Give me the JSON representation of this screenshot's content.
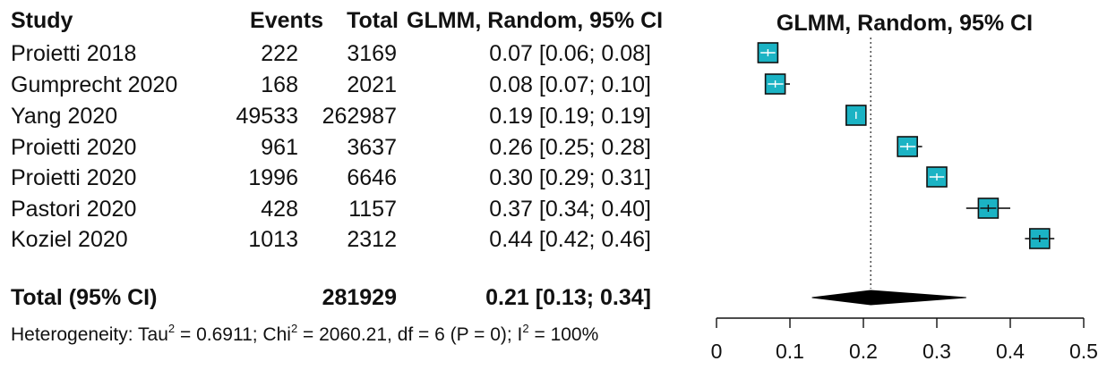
{
  "table": {
    "headers": {
      "study": "Study",
      "events": "Events",
      "total": "Total",
      "ci": "GLMM, Random, 95% CI",
      "plot": "GLMM, Random, 95% CI"
    },
    "rows": [
      {
        "study": "Proietti 2018",
        "events": "222",
        "total": "3169",
        "ci": "0.07 [0.06; 0.08]"
      },
      {
        "study": "Gumprecht 2020",
        "events": "168",
        "total": "2021",
        "ci": "0.08 [0.07; 0.10]"
      },
      {
        "study": "Yang 2020",
        "events": "49533",
        "total": "262987",
        "ci": "0.19 [0.19; 0.19]"
      },
      {
        "study": "Proietti 2020",
        "events": "961",
        "total": "3637",
        "ci": "0.26 [0.25; 0.28]"
      },
      {
        "study": "Proietti 2020",
        "events": "1996",
        "total": "6646",
        "ci": "0.30 [0.29; 0.31]"
      },
      {
        "study": "Pastori 2020",
        "events": "428",
        "total": "1157",
        "ci": "0.37 [0.34; 0.40]"
      },
      {
        "study": "Koziel 2020",
        "events": "1013",
        "total": "2312",
        "ci": "0.44 [0.42; 0.46]"
      }
    ],
    "total_row": {
      "label": "Total (95% CI)",
      "total": "281929",
      "ci": "0.21 [0.13; 0.34]"
    },
    "heterogeneity": {
      "prefix": "Heterogeneity: Tau",
      "tau2": "= 0.6911; Chi",
      "chi2": "= 2060.21, df = 6 (P = 0); I",
      "i2": "= 100%"
    }
  },
  "chart_data": {
    "type": "forest",
    "title": "GLMM, Random, 95% CI",
    "xlim": [
      0,
      0.5
    ],
    "xticks": [
      "0",
      "0.1",
      "0.2",
      "0.3",
      "0.4",
      "0.5"
    ],
    "reference_line": 0.21,
    "studies": [
      {
        "name": "Proietti 2018",
        "est": 0.07,
        "lo": 0.06,
        "hi": 0.08
      },
      {
        "name": "Gumprecht 2020",
        "est": 0.08,
        "lo": 0.07,
        "hi": 0.1
      },
      {
        "name": "Yang 2020",
        "est": 0.19,
        "lo": 0.19,
        "hi": 0.19
      },
      {
        "name": "Proietti 2020",
        "est": 0.26,
        "lo": 0.25,
        "hi": 0.28
      },
      {
        "name": "Proietti 2020",
        "est": 0.3,
        "lo": 0.29,
        "hi": 0.31
      },
      {
        "name": "Pastori 2020",
        "est": 0.37,
        "lo": 0.34,
        "hi": 0.4
      },
      {
        "name": "Koziel 2020",
        "est": 0.44,
        "lo": 0.42,
        "hi": 0.46
      }
    ],
    "pooled": {
      "est": 0.21,
      "lo": 0.13,
      "hi": 0.34
    },
    "box_color": "#1bb3c4"
  }
}
